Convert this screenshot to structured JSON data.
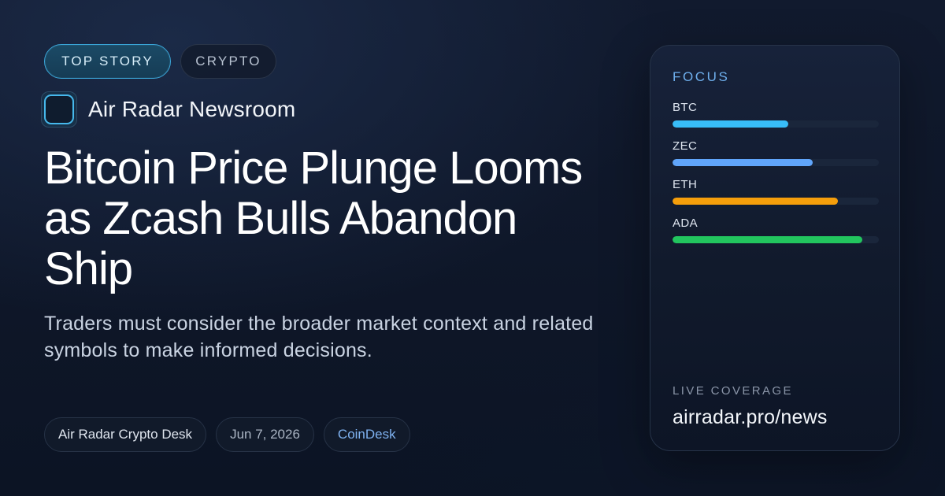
{
  "chips": {
    "primary": "TOP STORY",
    "secondary": "CRYPTO"
  },
  "brand": {
    "name": "Air Radar Newsroom",
    "logo_icon": "radar-square-icon",
    "accent": "#46b8ec"
  },
  "headline": "Bitcoin Price Plunge Looms as Zcash Bulls Abandon Ship",
  "subhead": "Traders must consider the broader market context and related symbols to make informed decisions.",
  "meta": {
    "desk": "Air Radar Crypto Desk",
    "date": "Jun 7, 2026",
    "source": "CoinDesk"
  },
  "panel": {
    "heading": "FOCUS",
    "items": [
      {
        "label": "BTC",
        "value": 0.56,
        "color": "#38bdf8"
      },
      {
        "label": "ZEC",
        "value": 0.68,
        "color": "#60a5fa"
      },
      {
        "label": "ETH",
        "value": 0.8,
        "color": "#f59e0b"
      },
      {
        "label": "ADA",
        "value": 0.92,
        "color": "#22c55e"
      }
    ],
    "live_label": "LIVE COVERAGE",
    "url": "airradar.pro/news"
  }
}
